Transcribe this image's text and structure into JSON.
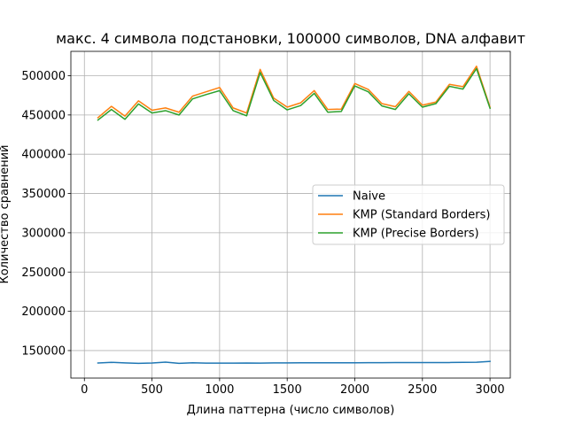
{
  "chart_data": {
    "type": "line",
    "title": "макс. 4 символа подстановки, 100000 символов, DNA алфавит",
    "xlabel": "Длина паттерна (число символов)",
    "ylabel": "Количество сравнений",
    "xlim": [
      -100,
      3150
    ],
    "ylim": [
      115000,
      531000
    ],
    "xticks": [
      0,
      500,
      1000,
      1500,
      2000,
      2500,
      3000
    ],
    "xtick_labels": [
      "0",
      "500",
      "1000",
      "1500",
      "2000",
      "2500",
      "3000"
    ],
    "yticks": [
      150000,
      200000,
      250000,
      300000,
      350000,
      400000,
      450000,
      500000
    ],
    "ytick_labels": [
      "150000",
      "200000",
      "250000",
      "300000",
      "350000",
      "400000",
      "450000",
      "500000"
    ],
    "grid": true,
    "legend_position": "center-right",
    "x": [
      100,
      200,
      300,
      400,
      500,
      600,
      700,
      800,
      900,
      1000,
      1100,
      1200,
      1300,
      1400,
      1500,
      1600,
      1700,
      1800,
      1900,
      2000,
      2100,
      2200,
      2300,
      2400,
      2500,
      2600,
      2700,
      2800,
      2900,
      3000
    ],
    "series": [
      {
        "name": "Naive",
        "color": "#1f77b4",
        "values": [
          134200,
          135000,
          134300,
          133700,
          134200,
          135300,
          133800,
          134400,
          134000,
          134000,
          134000,
          134200,
          134000,
          134300,
          134300,
          134400,
          134400,
          134500,
          134500,
          134400,
          134600,
          134600,
          134700,
          134800,
          134800,
          134800,
          134800,
          135000,
          135200,
          136200
        ]
      },
      {
        "name": "KMP (Standard Borders)",
        "color": "#ff7f0e",
        "values": [
          446500,
          461000,
          448500,
          468000,
          456000,
          459000,
          453500,
          474000,
          479500,
          485000,
          459000,
          452500,
          508000,
          471500,
          460000,
          465500,
          481000,
          457000,
          457500,
          490000,
          482500,
          464500,
          460500,
          480000,
          462500,
          466500,
          489000,
          486000,
          512000,
          460000
        ]
      },
      {
        "name": "KMP (Precise Borders)",
        "color": "#2ca02c",
        "values": [
          443500,
          457000,
          444500,
          464000,
          452500,
          455500,
          450000,
          470500,
          476000,
          481000,
          455500,
          449000,
          504000,
          468500,
          456500,
          462000,
          477500,
          453500,
          454500,
          487000,
          479500,
          461500,
          457000,
          477000,
          460000,
          464500,
          486500,
          483000,
          509000,
          458500
        ]
      }
    ]
  }
}
